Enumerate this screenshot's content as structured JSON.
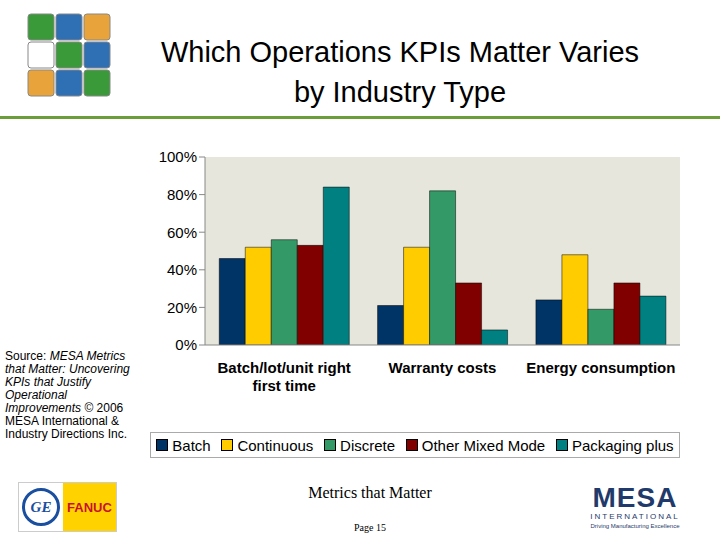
{
  "chart_data": {
    "type": "bar",
    "title": "Which Operations KPIs Matter Varies by Industry Type",
    "categories": [
      "Batch/lot/unit right first time",
      "Warranty costs",
      "Energy consumption"
    ],
    "series": [
      {
        "name": "Batch",
        "color": "#003366",
        "values": [
          46,
          21,
          24
        ]
      },
      {
        "name": "Continuous",
        "color": "#FFCC00",
        "values": [
          52,
          52,
          48
        ]
      },
      {
        "name": "Discrete",
        "color": "#339966",
        "values": [
          56,
          82,
          19
        ]
      },
      {
        "name": "Other Mixed Mode",
        "color": "#800000",
        "values": [
          53,
          33,
          33
        ]
      },
      {
        "name": "Packaging plus",
        "color": "#008080",
        "values": [
          84,
          8,
          26
        ]
      }
    ],
    "ylim": [
      0,
      100
    ],
    "yticks": [
      {
        "value": 0,
        "label": "0%"
      },
      {
        "value": 20,
        "label": "20%"
      },
      {
        "value": 40,
        "label": "40%"
      },
      {
        "value": 60,
        "label": "60%"
      },
      {
        "value": 80,
        "label": "80%"
      },
      {
        "value": 100,
        "label": "100%"
      }
    ],
    "grid": false,
    "legend": "bottom",
    "data_labels": false
  },
  "slide": {
    "source": {
      "label": "Source:",
      "title": "MESA Metrics that Matter: Uncovering KPIs that Justify Operational Improvements",
      "copyright": "© 2006 MESA International & Industry Directions Inc."
    },
    "footer": "Metrics that Matter",
    "page": "Page 15",
    "left_logo": {
      "monogram": "GE",
      "name": "FANUC"
    },
    "right_logo": {
      "name": "MESA",
      "sub": "INTERNATIONAL",
      "tagline": "Driving Manufacturing Excellence"
    }
  }
}
